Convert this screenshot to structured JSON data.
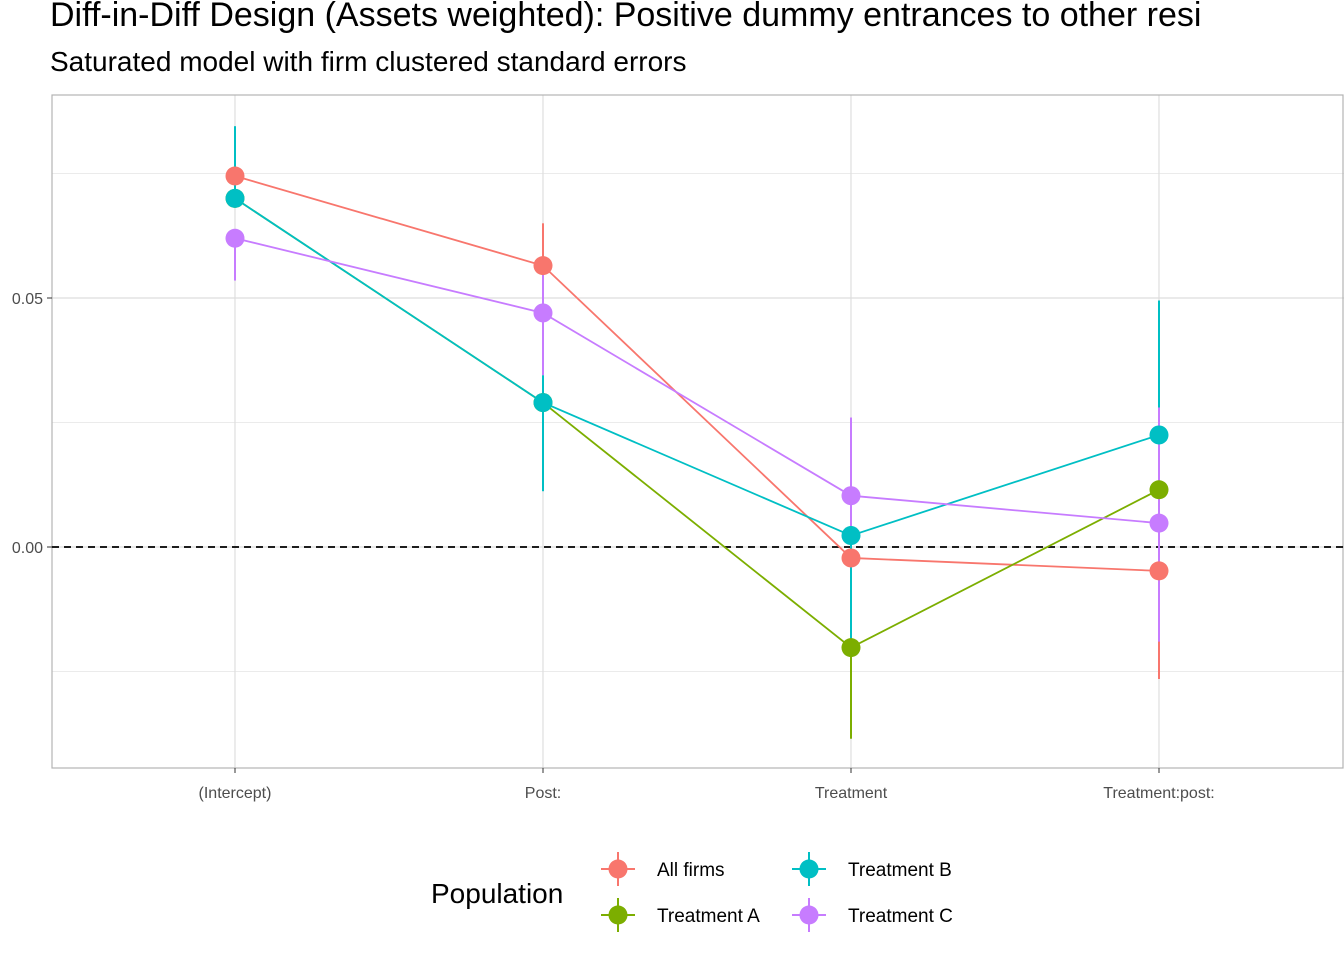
{
  "chart_data": {
    "type": "line",
    "title": "Diff-in-Diff Design (Assets weighted): Positive dummy entrances to other resi",
    "subtitle": "Saturated model with firm clustered standard errors",
    "xlabel": "",
    "ylabel": "",
    "categories": [
      "(Intercept)",
      "Post:",
      "Treatment",
      "Treatment:post:"
    ],
    "ylim": [
      -0.044,
      0.091
    ],
    "yticks": [
      0.0,
      0.05
    ],
    "ytick_labels": [
      "0.00",
      "0.05"
    ],
    "reference_line": 0.0,
    "grid": true,
    "legend": {
      "title": "Population",
      "position": "bottom"
    },
    "series": [
      {
        "name": "All firms",
        "color": "#F8766D",
        "values": [
          0.0745,
          0.0565,
          -0.0022,
          -0.0048
        ],
        "lower": [
          0.0745,
          0.0475,
          -0.0022,
          -0.0265
        ],
        "upper": [
          0.0745,
          0.065,
          -0.0022,
          0.0045
        ]
      },
      {
        "name": "Treatment A",
        "color": "#7CAE00",
        "values": [
          0.07,
          0.029,
          -0.0202,
          0.0115
        ],
        "lower": [
          0.07,
          0.029,
          -0.0385,
          0.0115
        ],
        "upper": [
          0.07,
          0.029,
          -0.0202,
          0.0115
        ]
      },
      {
        "name": "Treatment B",
        "color": "#00BFC4",
        "values": [
          0.07,
          0.029,
          0.0023,
          0.0225
        ],
        "lower": [
          0.07,
          0.0112,
          -0.019,
          0.0048
        ],
        "upper": [
          0.0845,
          0.0345,
          0.0023,
          0.0495
        ]
      },
      {
        "name": "Treatment C",
        "color": "#C77CFF",
        "values": [
          0.062,
          0.047,
          0.0103,
          0.0048
        ],
        "lower": [
          0.0535,
          0.0345,
          0.0023,
          -0.019
        ],
        "upper": [
          0.062,
          0.0565,
          0.026,
          0.028
        ]
      }
    ]
  }
}
